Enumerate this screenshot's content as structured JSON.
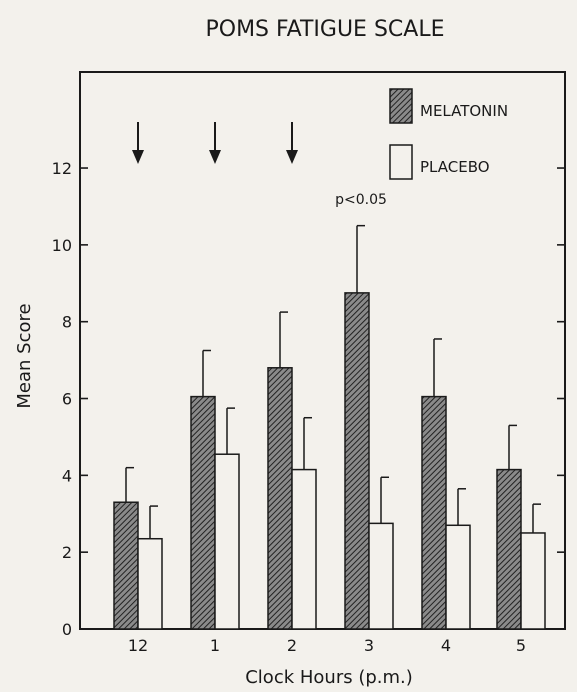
{
  "chart_data": {
    "type": "bar",
    "title": "POMS FATIGUE SCALE",
    "xlabel": "Clock Hours (p.m.)",
    "ylabel": "Mean Score",
    "categories": [
      "12",
      "1",
      "2",
      "3",
      "4",
      "5"
    ],
    "ylim": [
      0,
      14.5
    ],
    "yticks": [
      0,
      2,
      4,
      6,
      8,
      10,
      12
    ],
    "series": [
      {
        "name": "MELATONIN",
        "pattern": "hatched",
        "values": [
          3.3,
          6.05,
          6.8,
          8.75,
          6.05,
          4.15
        ],
        "errors": [
          0.9,
          1.2,
          1.45,
          1.75,
          1.5,
          1.15
        ]
      },
      {
        "name": "PLACEBO",
        "pattern": "open",
        "values": [
          2.35,
          4.55,
          4.15,
          2.75,
          2.7,
          2.5
        ],
        "errors": [
          0.85,
          1.2,
          1.35,
          1.2,
          0.95,
          0.75
        ]
      }
    ],
    "arrows_at": [
      "12",
      "1",
      "2"
    ],
    "annotations": [
      {
        "text": "p<0.05",
        "category": "3"
      }
    ],
    "legend_position": "top-right",
    "grid": false,
    "colors": {
      "ink": "#1a1a1a",
      "paper": "#f3f1ec",
      "hatch": "#1a1a1a"
    }
  }
}
